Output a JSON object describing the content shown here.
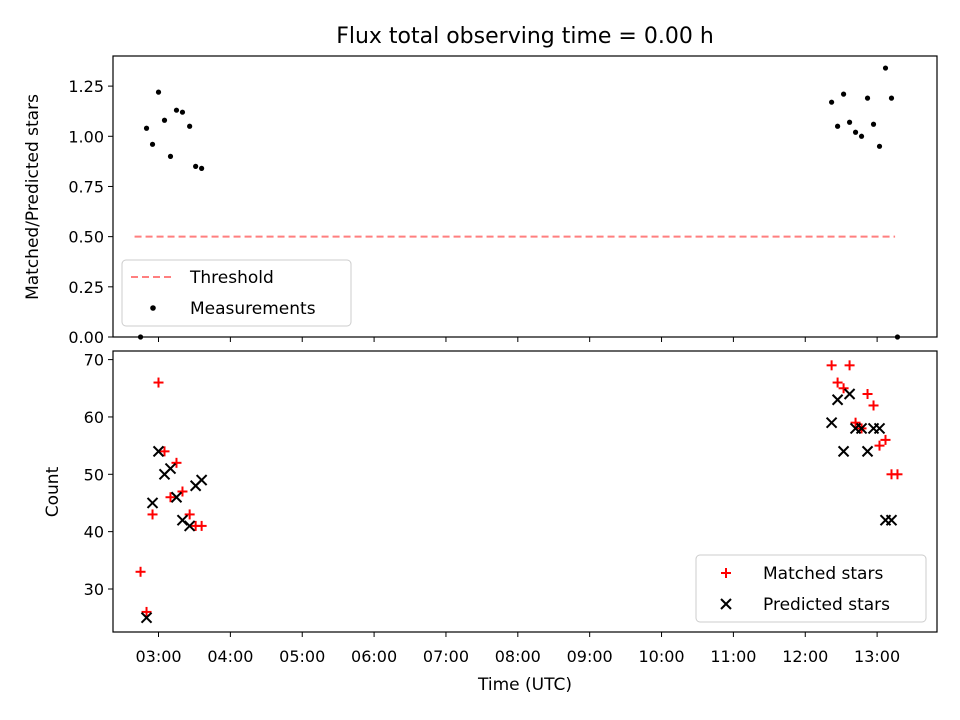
{
  "chart_data": [
    {
      "type": "scatter",
      "title": "Flux total observing time = 0.00 h",
      "xlabel": "",
      "ylabel": "Matched/Predicted stars",
      "ylim": [
        0,
        1.4
      ],
      "yticks": [
        0.0,
        0.25,
        0.5,
        0.75,
        1.0,
        1.25
      ],
      "ytick_labels": [
        "0.00",
        "0.25",
        "0.50",
        "0.75",
        "1.00",
        "1.25"
      ],
      "x_is_time_hours": true,
      "xlim": [
        "02:22",
        "13:50"
      ],
      "legend_position": "lower-left",
      "threshold": {
        "name": "Threshold",
        "value": 0.5,
        "x": [
          "02:40",
          "13:15"
        ],
        "color": "#ff7f7f",
        "style": "dashed"
      },
      "series": [
        {
          "name": "Measurements",
          "color": "#000000",
          "marker": "dot",
          "points": [
            [
              "02:45",
              0.0
            ],
            [
              "02:50",
              1.04
            ],
            [
              "02:55",
              0.96
            ],
            [
              "03:00",
              1.22
            ],
            [
              "03:05",
              1.08
            ],
            [
              "03:10",
              0.9
            ],
            [
              "03:15",
              1.13
            ],
            [
              "03:20",
              1.12
            ],
            [
              "03:26",
              1.05
            ],
            [
              "03:31",
              0.85
            ],
            [
              "03:36",
              0.84
            ],
            [
              "12:22",
              1.17
            ],
            [
              "12:27",
              1.05
            ],
            [
              "12:32",
              1.21
            ],
            [
              "12:37",
              1.07
            ],
            [
              "12:42",
              1.02
            ],
            [
              "12:47",
              1.0
            ],
            [
              "12:52",
              1.19
            ],
            [
              "12:57",
              1.06
            ],
            [
              "13:02",
              0.95
            ],
            [
              "13:07",
              1.34
            ],
            [
              "13:12",
              1.19
            ],
            [
              "13:17",
              0.0
            ]
          ]
        }
      ]
    },
    {
      "type": "scatter",
      "title": "",
      "xlabel": "Time (UTC)",
      "ylabel": "Count",
      "ylim": [
        22.5,
        71.5
      ],
      "yticks": [
        30,
        40,
        50,
        60,
        70
      ],
      "ytick_labels": [
        "30",
        "40",
        "50",
        "60",
        "70"
      ],
      "x_is_time_hours": true,
      "xlim": [
        "02:22",
        "13:50"
      ],
      "xticks": [
        "03:00",
        "04:00",
        "05:00",
        "06:00",
        "07:00",
        "08:00",
        "09:00",
        "10:00",
        "11:00",
        "12:00",
        "13:00"
      ],
      "xtick_labels": [
        "03:00",
        "04:00",
        "05:00",
        "06:00",
        "07:00",
        "08:00",
        "09:00",
        "10:00",
        "11:00",
        "12:00",
        "13:00"
      ],
      "legend_position": "lower-right",
      "series": [
        {
          "name": "Matched stars",
          "color": "#ff0000",
          "marker": "plus",
          "points": [
            [
              "02:45",
              33
            ],
            [
              "02:50",
              26
            ],
            [
              "02:55",
              43
            ],
            [
              "03:00",
              66
            ],
            [
              "03:05",
              54
            ],
            [
              "03:10",
              46
            ],
            [
              "03:15",
              52
            ],
            [
              "03:20",
              47
            ],
            [
              "03:26",
              43
            ],
            [
              "03:31",
              41
            ],
            [
              "03:36",
              41
            ],
            [
              "12:22",
              69
            ],
            [
              "12:27",
              66
            ],
            [
              "12:32",
              65
            ],
            [
              "12:37",
              69
            ],
            [
              "12:42",
              59
            ],
            [
              "12:47",
              58
            ],
            [
              "12:52",
              64
            ],
            [
              "12:57",
              62
            ],
            [
              "13:02",
              55
            ],
            [
              "13:07",
              56
            ],
            [
              "13:12",
              50
            ],
            [
              "13:17",
              50
            ]
          ]
        },
        {
          "name": "Predicted stars",
          "color": "#000000",
          "marker": "x",
          "points": [
            [
              "02:50",
              25
            ],
            [
              "02:55",
              45
            ],
            [
              "03:00",
              54
            ],
            [
              "03:05",
              50
            ],
            [
              "03:10",
              51
            ],
            [
              "03:15",
              46
            ],
            [
              "03:20",
              42
            ],
            [
              "03:26",
              41
            ],
            [
              "03:31",
              48
            ],
            [
              "03:36",
              49
            ],
            [
              "12:22",
              59
            ],
            [
              "12:27",
              63
            ],
            [
              "12:32",
              54
            ],
            [
              "12:37",
              64
            ],
            [
              "12:42",
              58
            ],
            [
              "12:47",
              58
            ],
            [
              "12:52",
              54
            ],
            [
              "12:57",
              58
            ],
            [
              "13:02",
              58
            ],
            [
              "13:07",
              42
            ],
            [
              "13:12",
              42
            ]
          ]
        }
      ]
    }
  ]
}
